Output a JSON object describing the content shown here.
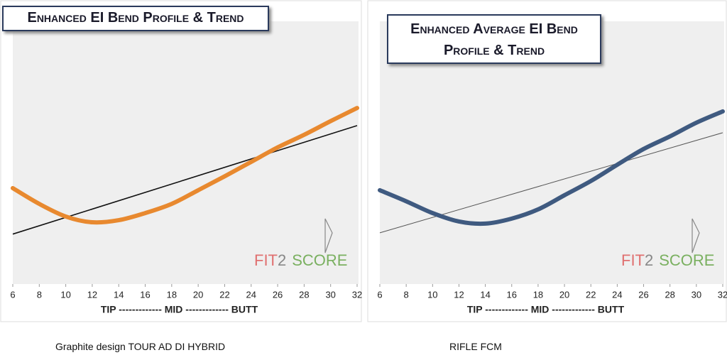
{
  "chart_data": [
    {
      "type": "line",
      "title": "Enhanced EI Bend Profile & Trend",
      "x": [
        6,
        8,
        10,
        12,
        14,
        16,
        18,
        20,
        22,
        24,
        26,
        28,
        30,
        32
      ],
      "xlim": [
        6,
        32
      ],
      "xticks": [
        6,
        8,
        10,
        12,
        14,
        16,
        18,
        20,
        22,
        24,
        26,
        28,
        30,
        32
      ],
      "ylim": [
        0,
        100
      ],
      "x_label": "TIP ------------- MID ------------- BUTT",
      "series": [
        {
          "color": "#e8892f",
          "values": [
            36.5,
            30.5,
            25.7,
            23.5,
            24.3,
            27,
            30.5,
            35.7,
            41,
            46.5,
            52,
            56.8,
            62,
            67
          ]
        }
      ],
      "trend": {
        "color": "#111111",
        "x": [
          6,
          32
        ],
        "values": [
          19,
          60.3
        ]
      },
      "logo": [
        "FIT",
        "2",
        "SCORE"
      ],
      "caption": "Graphite design TOUR AD DI  HYBRID"
    },
    {
      "type": "line",
      "title": "Enhanced  Average EI Bend Profile & Trend",
      "x": [
        6,
        8,
        10,
        12,
        14,
        16,
        18,
        20,
        22,
        24,
        26,
        28,
        30,
        32
      ],
      "xlim": [
        6,
        32
      ],
      "xticks": [
        6,
        8,
        10,
        12,
        14,
        16,
        18,
        20,
        22,
        24,
        26,
        28,
        30,
        32
      ],
      "ylim": [
        0,
        100
      ],
      "x_label": "TIP ------------- MID ------------- BUTT",
      "series": [
        {
          "color": "#3f5a80",
          "values": [
            35.7,
            31.5,
            27,
            23.8,
            23,
            24.9,
            28.4,
            33.8,
            39.2,
            45.4,
            51.4,
            56.2,
            61.4,
            65.7
          ]
        }
      ],
      "trend": {
        "color": "#555555",
        "x": [
          6,
          32
        ],
        "values": [
          19.5,
          57.6
        ]
      },
      "logo": [
        "FIT",
        "2",
        "SCORE"
      ],
      "caption": "RIFLE FCM"
    }
  ]
}
